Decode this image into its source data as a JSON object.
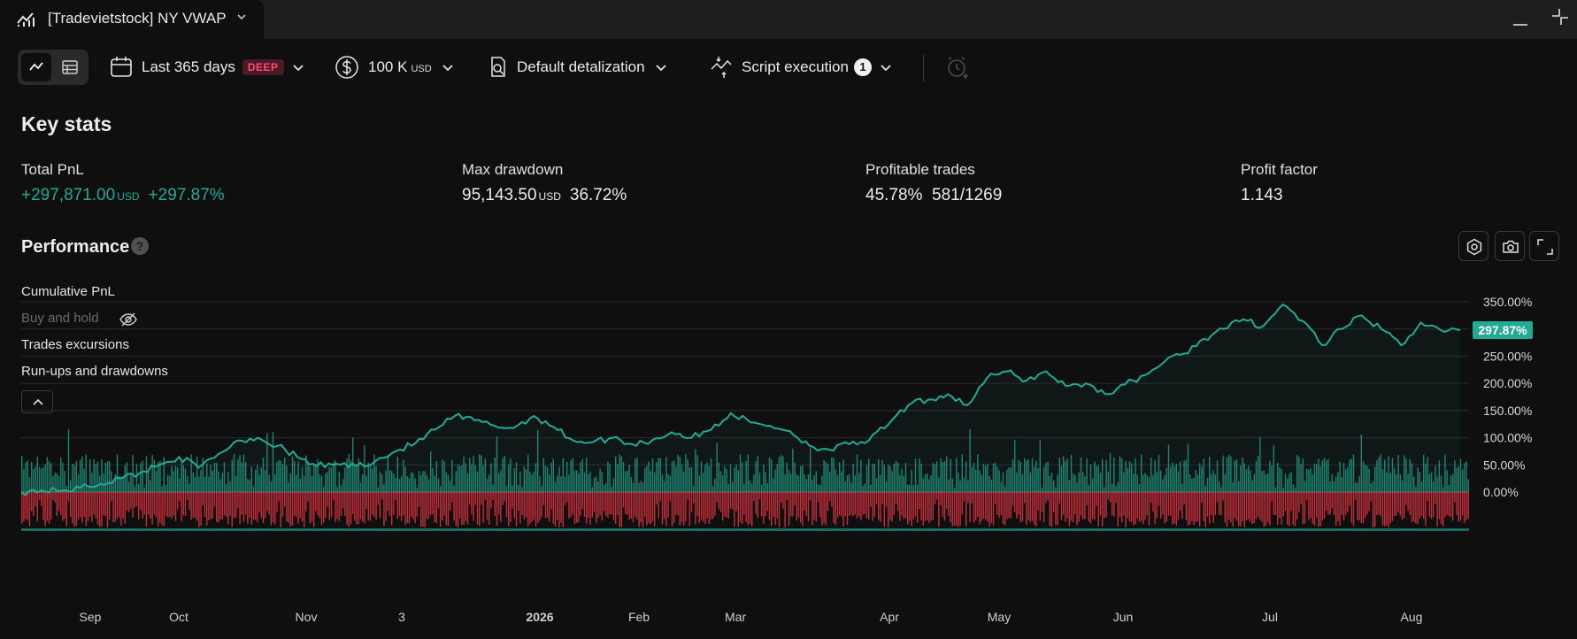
{
  "window": {
    "tab_title": "[Tradevietstock] NY VWAP"
  },
  "toolbar": {
    "date_range_label": "Last 365 days",
    "date_range_badge": "DEEP",
    "capital_value": "100 K",
    "capital_unit": "USD",
    "detalization_label": "Default detalization",
    "script_execution_label": "Script execution",
    "script_execution_count": "1"
  },
  "key_stats": {
    "title": "Key stats",
    "total_pnl": {
      "label": "Total PnL",
      "value": "+297,871.00",
      "unit": "USD",
      "percent": "+297.87%"
    },
    "max_drawdown": {
      "label": "Max drawdown",
      "value": "95,143.50",
      "unit": "USD",
      "percent": "36.72%"
    },
    "profitable_trades": {
      "label": "Profitable trades",
      "percent": "45.78%",
      "ratio": "581/1269"
    },
    "profit_factor": {
      "label": "Profit factor",
      "value": "1.143"
    }
  },
  "performance": {
    "title": "Performance",
    "help_glyph": "?",
    "legend": [
      {
        "label": "Cumulative PnL",
        "visible": true
      },
      {
        "label": "Buy and hold",
        "visible": false
      },
      {
        "label": "Trades excursions",
        "visible": true
      },
      {
        "label": "Run-ups and drawdowns",
        "visible": true
      }
    ]
  },
  "colors": {
    "accent_green": "#22ab94",
    "loss_red": "#f23645",
    "badge_red": "#ff4c73",
    "background": "#0f0f0f"
  },
  "chart_data": {
    "type": "line",
    "x_tick_labels": [
      "Sep",
      "Oct",
      "Nov",
      "3",
      "2026",
      "Feb",
      "Mar",
      "Apr",
      "May",
      "Jun",
      "Jul",
      "Aug"
    ],
    "y_tick_labels": [
      "350.00%",
      "300.00%",
      "250.00%",
      "200.00%",
      "150.00%",
      "100.00%",
      "50.00%",
      "0.00%"
    ],
    "y_unit": "%",
    "ylim": [
      -50,
      350
    ],
    "last_value_label": "297.87%",
    "series": [
      {
        "name": "Cumulative PnL",
        "x_index": [
          0,
          5,
          10,
          15,
          20,
          25,
          30,
          35,
          40,
          45,
          50,
          55,
          60,
          65,
          70,
          75,
          80,
          85,
          90,
          95,
          100,
          105,
          110,
          115,
          120,
          125,
          130,
          135,
          140,
          145,
          150,
          155,
          160,
          165,
          170,
          175,
          180,
          185,
          190,
          195,
          200,
          205,
          210,
          215,
          220,
          225,
          230,
          235,
          240,
          245,
          250,
          255,
          260,
          265,
          270,
          275,
          280,
          285,
          290,
          295,
          300,
          305,
          310,
          315,
          320,
          325,
          330,
          335,
          340,
          345,
          350,
          355,
          360,
          365
        ],
        "values": [
          0,
          3,
          2,
          8,
          15,
          25,
          35,
          50,
          65,
          45,
          70,
          95,
          100,
          85,
          65,
          48,
          52,
          48,
          58,
          75,
          90,
          115,
          140,
          132,
          122,
          118,
          140,
          120,
          95,
          92,
          100,
          88,
          95,
          110,
          100,
          115,
          145,
          128,
          122,
          112,
          85,
          78,
          88,
          95,
          125,
          160,
          170,
          180,
          160,
          210,
          222,
          205,
          222,
          195,
          200,
          180,
          198,
          215,
          240,
          255,
          282,
          300,
          318,
          305,
          345,
          315,
          270,
          300,
          325,
          300,
          270,
          312,
          298,
          297.87
        ]
      }
    ],
    "excursions_note": "Trades excursions shown as dense green (run-up) bars above 0% and red (drawdown) bars below 0%"
  }
}
